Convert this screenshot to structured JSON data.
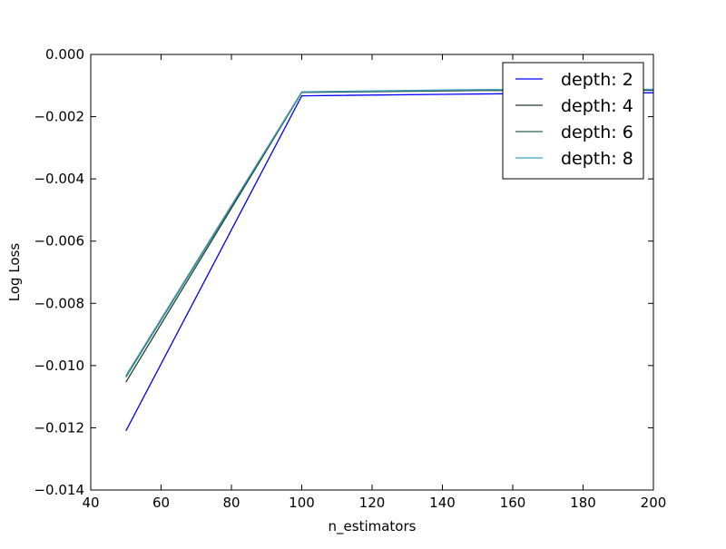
{
  "chart_data": {
    "type": "line",
    "title": "",
    "xlabel": "n_estimators",
    "ylabel": "Log Loss",
    "xlim": [
      40,
      200
    ],
    "ylim": [
      -0.014,
      0.0
    ],
    "xticks": [
      40,
      60,
      80,
      100,
      120,
      140,
      160,
      180,
      200
    ],
    "yticks": [
      0.0,
      -0.002,
      -0.004,
      -0.006,
      -0.008,
      -0.01,
      -0.012,
      -0.014
    ],
    "xtick_labels": [
      "40",
      "60",
      "80",
      "100",
      "120",
      "140",
      "160",
      "180",
      "200"
    ],
    "ytick_labels": [
      "0.000",
      "−0.002",
      "−0.004",
      "−0.006",
      "−0.008",
      "−0.010",
      "−0.012",
      "−0.014"
    ],
    "grid": false,
    "legend_position": "top-right",
    "x": [
      50,
      100,
      150,
      200
    ],
    "series": [
      {
        "name": "depth: 2",
        "color": "#0000ff",
        "values": [
          -0.0121,
          -0.00133,
          -0.00127,
          -0.00123
        ]
      },
      {
        "name": "depth: 4",
        "color": "#1f3f2f",
        "values": [
          -0.01053,
          -0.00122,
          -0.00116,
          -0.00115
        ]
      },
      {
        "name": "depth: 6",
        "color": "#2f5f4f",
        "values": [
          -0.01037,
          -0.00121,
          -0.00114,
          -0.00113
        ]
      },
      {
        "name": "depth: 8",
        "color": "#3fa0bf",
        "values": [
          -0.01032,
          -0.0012,
          -0.00113,
          -0.00112
        ]
      }
    ]
  }
}
